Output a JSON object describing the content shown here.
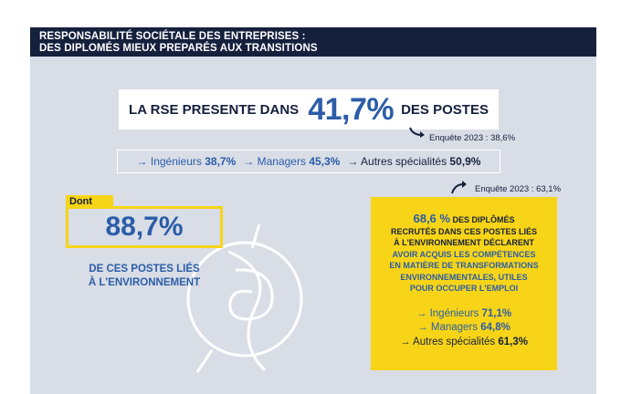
{
  "header": {
    "line1": "RESPONSABILITÉ SOCIÉTALE DES ENTREPRISES :",
    "line2": "DES DIPLOMÉS MIEUX PREPARÉS AUX TRANSITIONS"
  },
  "headline": {
    "prefix": "LA RSE PRESENTE DANS",
    "value": "41,7%",
    "suffix": "DES POSTES"
  },
  "survey_note_1": "Enquête 2023 : 38,6%",
  "specialties": {
    "engineers_label": "→ Ingénieurs",
    "engineers_value": "38,7%",
    "managers_label": "→ Managers",
    "managers_value": "45,3%",
    "others_label": "→ Autres spécialités",
    "others_value": "50,9%"
  },
  "survey_note_2": "Enquête 2023 : 63,1%",
  "dont": {
    "tag": "Dont",
    "value": "88,7%",
    "caption_line1": "DE CES POSTES LIÉS",
    "caption_line2": "À L'ENVIRONNEMENT"
  },
  "yellow_box": {
    "percent": "68,6 %",
    "text_after_percent": "DES DIPLÔMÉS",
    "line2": "RECRUTÉS DANS CES POSTES LIÉS",
    "line3": "À L'ENVIRONNEMENT DÉCLARENT",
    "line4": "AVOIR ACQUIS LES COMPÉTENCES",
    "line5": "EN MATIÈRE DE TRANSFORMATIONS",
    "line6": "ENVIRONNEMENTALES, UTILES",
    "line7": "POUR OCCUPER L'EMPLOI",
    "engineers_label": "→ Ingénieurs",
    "engineers_value": "71,1%",
    "managers_label": "→ Managers",
    "managers_value": "64,8%",
    "others_label": "→ Autres spécialités",
    "others_value": "61,3%"
  },
  "colors": {
    "navy": "#15203d",
    "blue": "#2b5da8",
    "yellow": "#f7d417",
    "panel": "#d9dde6"
  },
  "icons": {
    "arrow": "curved-arrow-icon",
    "decoration": "globe-leaf-icon"
  }
}
